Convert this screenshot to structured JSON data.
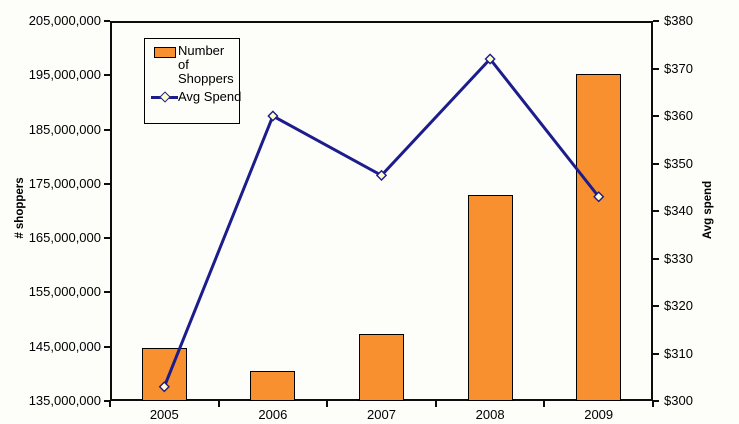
{
  "chart_data": {
    "type": "combo-bar-line",
    "title": "",
    "categories": [
      "2005",
      "2006",
      "2007",
      "2008",
      "2009"
    ],
    "series": [
      {
        "name": "Number of Shoppers",
        "type": "bar",
        "axis": "left",
        "values": [
          144800000,
          140600000,
          147300000,
          172900000,
          195200000
        ],
        "color": "#F89030",
        "border_color": "#000000"
      },
      {
        "name": "Avg Spend",
        "type": "line",
        "axis": "right",
        "values": [
          303,
          360,
          347.5,
          372,
          343
        ],
        "color": "#1C1C8C",
        "marker": "diamond",
        "marker_fill": "#FFFFC8",
        "line_width": 3
      }
    ],
    "left_axis": {
      "title": "# shoppers",
      "min": 135000000,
      "max": 205000000,
      "step": 10000000,
      "tick_labels": [
        "135,000,000",
        "145,000,000",
        "155,000,000",
        "165,000,000",
        "175,000,000",
        "185,000,000",
        "195,000,000",
        "205,000,000"
      ]
    },
    "right_axis": {
      "title": "Avg spend",
      "min": 300,
      "max": 380,
      "step": 10,
      "tick_labels": [
        "$300",
        "$310",
        "$320",
        "$330",
        "$340",
        "$350",
        "$360",
        "$370",
        "$380"
      ]
    },
    "x_axis": {
      "tick_labels": [
        "2005",
        "2006",
        "2007",
        "2008",
        "2009"
      ]
    },
    "legend": {
      "position": "top-left",
      "entries": [
        "Number of Shoppers",
        "Avg Spend"
      ]
    },
    "grid": false,
    "background": "#FDFDFA",
    "axis_color": "#0d0d0d"
  }
}
